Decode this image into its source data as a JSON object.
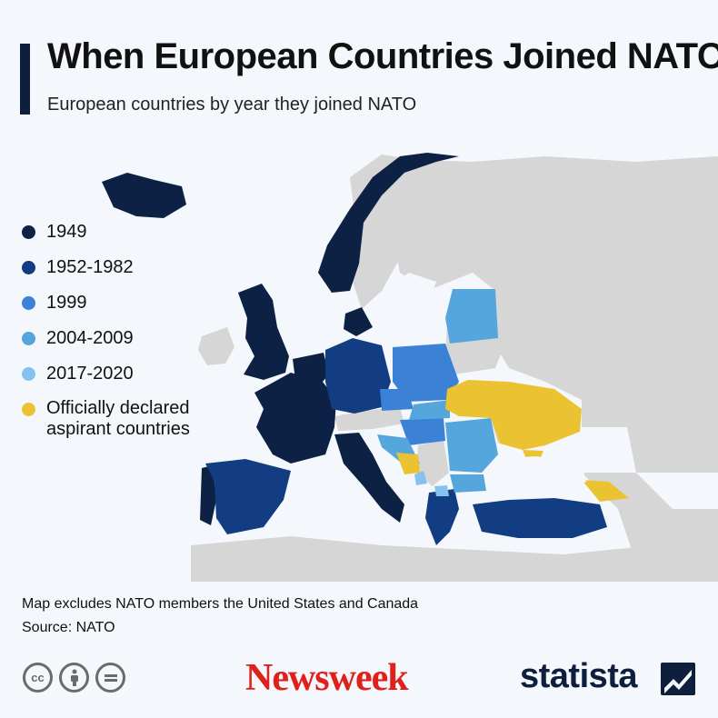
{
  "header": {
    "title": "When European Countries Joined NATO",
    "subtitle": "European countries by year they joined NATO"
  },
  "legend": {
    "items": [
      {
        "label": "1949",
        "color": "#0d2144"
      },
      {
        "label": "1952-1982",
        "color": "#123d82"
      },
      {
        "label": "1999",
        "color": "#3b82d6"
      },
      {
        "label": "2004-2009",
        "color": "#55a6dc"
      },
      {
        "label": "2017-2020",
        "color": "#86c2f0"
      },
      {
        "label": "Officially declared aspirant countries",
        "color": "#ebc332"
      }
    ]
  },
  "colors": {
    "background": "#f4f7fb",
    "land_non_member": "#d6d6d6",
    "sea": "#f4f7fb"
  },
  "footer": {
    "note": "Map excludes NATO members the United States and Canada",
    "source": "Source: NATO",
    "license_icons": [
      "cc-icon",
      "attribution-icon",
      "no-derivatives-icon"
    ],
    "logo_newsweek": "Newsweek",
    "logo_statista": "statista"
  }
}
